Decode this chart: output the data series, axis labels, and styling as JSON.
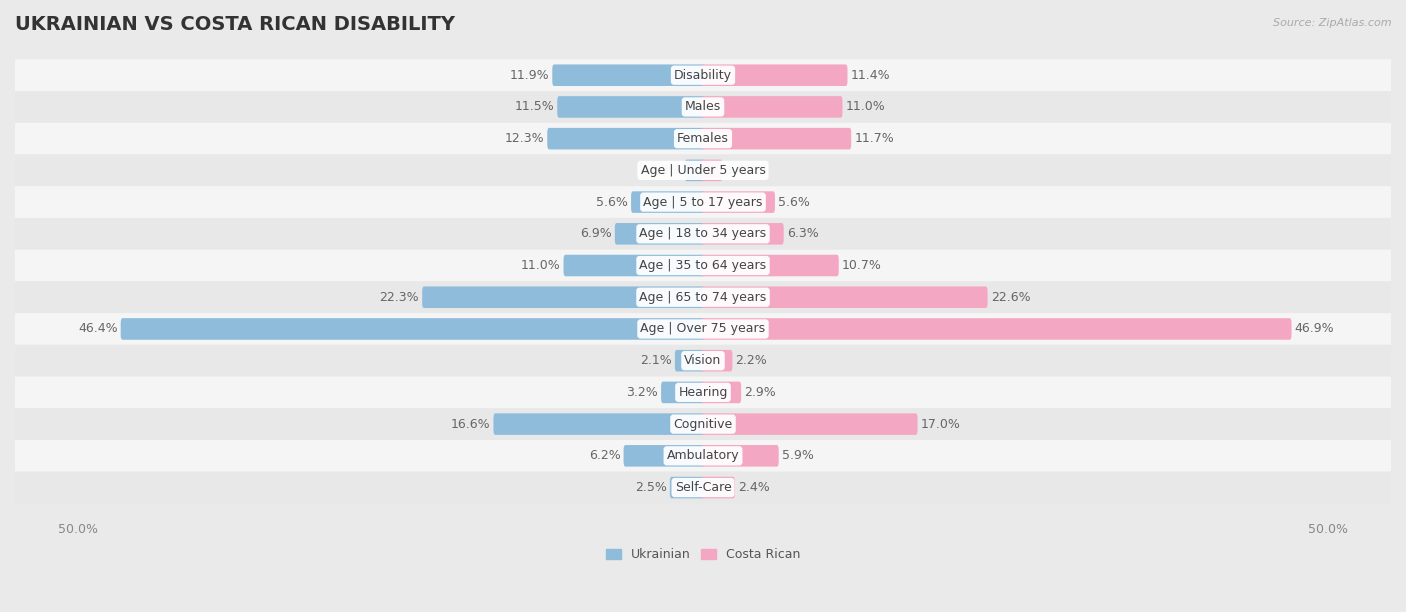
{
  "title": "UKRAINIAN VS COSTA RICAN DISABILITY",
  "source": "Source: ZipAtlas.com",
  "categories": [
    "Disability",
    "Males",
    "Females",
    "Age | Under 5 years",
    "Age | 5 to 17 years",
    "Age | 18 to 34 years",
    "Age | 35 to 64 years",
    "Age | 65 to 74 years",
    "Age | Over 75 years",
    "Vision",
    "Hearing",
    "Cognitive",
    "Ambulatory",
    "Self-Care"
  ],
  "ukrainian_values": [
    11.9,
    11.5,
    12.3,
    1.3,
    5.6,
    6.9,
    11.0,
    22.3,
    46.4,
    2.1,
    3.2,
    16.6,
    6.2,
    2.5
  ],
  "costa_rican_values": [
    11.4,
    11.0,
    11.7,
    1.4,
    5.6,
    6.3,
    10.7,
    22.6,
    46.9,
    2.2,
    2.9,
    17.0,
    5.9,
    2.4
  ],
  "ukrainian_color": "#8fbcdb",
  "costa_rican_color": "#f4a7c3",
  "background_color": "#eaeaea",
  "row_color_light": "#f5f5f5",
  "row_color_dark": "#e8e8e8",
  "x_max": 50.0,
  "legend_labels": [
    "Ukrainian",
    "Costa Rican"
  ],
  "title_fontsize": 14,
  "label_fontsize": 9,
  "value_fontsize": 9,
  "tick_fontsize": 9
}
